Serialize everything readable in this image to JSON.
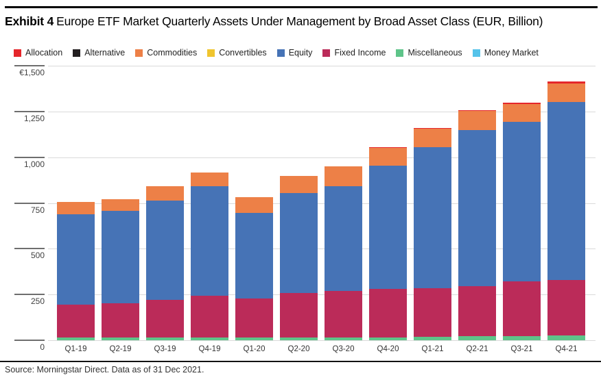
{
  "header": {
    "exhibit_label": "Exhibit 4",
    "title_rest": "Europe ETF Market Quarterly Assets Under Management by Broad Asset Class (EUR, Billion)"
  },
  "footer": {
    "source": "Source: Morningstar Direct. Data as of 31 Dec 2021."
  },
  "legend": [
    {
      "label": "Allocation",
      "color": "#e5262b"
    },
    {
      "label": "Alternative",
      "color": "#231f20"
    },
    {
      "label": "Commodities",
      "color": "#ed8047"
    },
    {
      "label": "Convertibles",
      "color": "#f0c52f"
    },
    {
      "label": "Equity",
      "color": "#4673b6"
    },
    {
      "label": "Fixed Income",
      "color": "#bb2b59"
    },
    {
      "label": "Miscellaneous",
      "color": "#5ec489"
    },
    {
      "label": "Money Market",
      "color": "#55c3ea"
    }
  ],
  "chart_data": {
    "type": "bar",
    "stacked": true,
    "title": "Europe ETF Market Quarterly Assets Under Management by Broad Asset Class (EUR, Billion)",
    "unit": "EUR, Billion",
    "grid": true,
    "legend_position": "top",
    "categories": [
      "Q1-19",
      "Q2-19",
      "Q3-19",
      "Q4-19",
      "Q1-20",
      "Q2-20",
      "Q3-20",
      "Q4-20",
      "Q1-21",
      "Q2-21",
      "Q3-21",
      "Q4-21"
    ],
    "series": [
      {
        "name": "Allocation",
        "color": "#e5262b",
        "values": [
          1,
          1,
          1,
          1,
          1,
          1,
          1,
          2,
          3,
          4,
          9,
          10
        ]
      },
      {
        "name": "Alternative",
        "color": "#231f20",
        "values": [
          0,
          0,
          0,
          0,
          0,
          0,
          0,
          0,
          0,
          0,
          0,
          0
        ]
      },
      {
        "name": "Commodities",
        "color": "#ed8047",
        "values": [
          65,
          65,
          76,
          77,
          85,
          96,
          110,
          100,
          104,
          104,
          96,
          104
        ]
      },
      {
        "name": "Convertibles",
        "color": "#f0c52f",
        "values": [
          0,
          0,
          0,
          0,
          0,
          0,
          0,
          0,
          0,
          0,
          0,
          0
        ]
      },
      {
        "name": "Equity",
        "color": "#4673b6",
        "values": [
          495,
          503,
          545,
          597,
          466,
          544,
          571,
          673,
          769,
          853,
          872,
          973
        ]
      },
      {
        "name": "Fixed Income",
        "color": "#bb2b59",
        "values": [
          180,
          188,
          205,
          230,
          215,
          244,
          255,
          265,
          267,
          274,
          300,
          302
        ]
      },
      {
        "name": "Miscellaneous",
        "color": "#5ec489",
        "values": [
          15,
          15,
          15,
          14,
          15,
          15,
          15,
          15,
          19,
          22,
          22,
          26
        ]
      },
      {
        "name": "Money Market",
        "color": "#55c3ea",
        "values": [
          0,
          0,
          0,
          0,
          0,
          0,
          0,
          0,
          0,
          0,
          0,
          0
        ]
      }
    ],
    "totals": [
      756,
      772,
      842,
      919,
      782,
      900,
      952,
      1055,
      1162,
      1257,
      1299,
      1415
    ],
    "stack_order_bottom_to_top": [
      "Money Market",
      "Miscellaneous",
      "Fixed Income",
      "Equity",
      "Convertibles",
      "Commodities",
      "Alternative",
      "Allocation"
    ],
    "y_axis": {
      "range": [
        0,
        1500
      ],
      "ticks": [
        1500,
        1250,
        1000,
        750,
        500,
        250,
        0
      ],
      "tick_labels": [
        "€1,500",
        "1,250",
        "1,000",
        "750",
        "500",
        "250",
        "0"
      ]
    }
  }
}
